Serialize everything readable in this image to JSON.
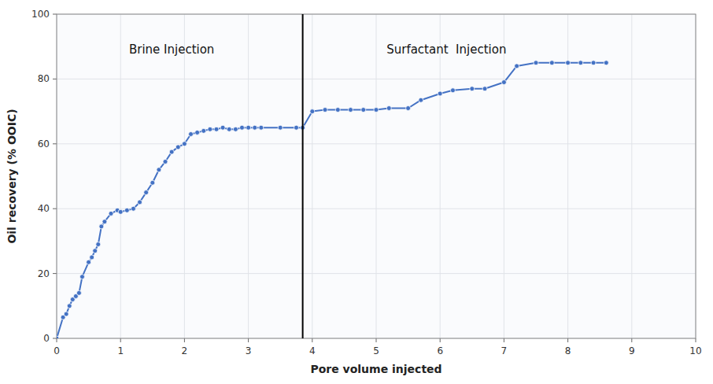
{
  "chart_data": {
    "type": "line",
    "x": [
      0.0,
      0.1,
      0.15,
      0.2,
      0.25,
      0.3,
      0.35,
      0.4,
      0.5,
      0.55,
      0.6,
      0.65,
      0.7,
      0.75,
      0.85,
      0.95,
      1.0,
      1.1,
      1.2,
      1.3,
      1.4,
      1.5,
      1.6,
      1.7,
      1.8,
      1.9,
      2.0,
      2.1,
      2.2,
      2.3,
      2.4,
      2.5,
      2.6,
      2.7,
      2.8,
      2.9,
      3.0,
      3.1,
      3.2,
      3.5,
      3.75,
      3.85,
      4.0,
      4.2,
      4.4,
      4.6,
      4.8,
      5.0,
      5.2,
      5.5,
      5.7,
      6.0,
      6.2,
      6.5,
      6.7,
      7.0,
      7.2,
      7.5,
      7.75,
      8.0,
      8.2,
      8.4,
      8.6
    ],
    "values": [
      0.0,
      6.5,
      7.5,
      10.0,
      12.0,
      13.0,
      14.0,
      19.0,
      23.5,
      25.0,
      27.0,
      29.0,
      34.5,
      36.0,
      38.5,
      39.5,
      39.0,
      39.5,
      40.0,
      42.0,
      45.0,
      48.0,
      52.0,
      54.5,
      57.5,
      59.0,
      60.0,
      63.0,
      63.5,
      64.0,
      64.5,
      64.5,
      65.0,
      64.5,
      64.5,
      65.0,
      65.0,
      65.0,
      65.0,
      65.0,
      65.0,
      65.0,
      70.0,
      70.5,
      70.5,
      70.5,
      70.5,
      70.5,
      71.0,
      71.0,
      73.5,
      75.5,
      76.5,
      77.0,
      77.0,
      79.0,
      84.0,
      85.0,
      85.0,
      85.0,
      85.0,
      85.0,
      85.0
    ],
    "color": "#4472C4",
    "marker": "circle",
    "line_style": "solid",
    "vlines": [
      3.85
    ],
    "annotations": [
      {
        "text": "Brine Injection",
        "x": 1.8,
        "y": 89
      },
      {
        "text": "Surfactant  Injection",
        "x": 6.1,
        "y": 89
      }
    ],
    "x_label": "Pore volume injected",
    "y_label": "Oil recovery (% OOIC)",
    "xlim": [
      0,
      10
    ],
    "ylim": [
      0,
      100
    ],
    "xticks": [
      0,
      1,
      2,
      3,
      4,
      5,
      6,
      7,
      8,
      9,
      10
    ],
    "yticks": [
      0,
      20,
      40,
      60,
      80,
      100
    ],
    "grid": true
  }
}
